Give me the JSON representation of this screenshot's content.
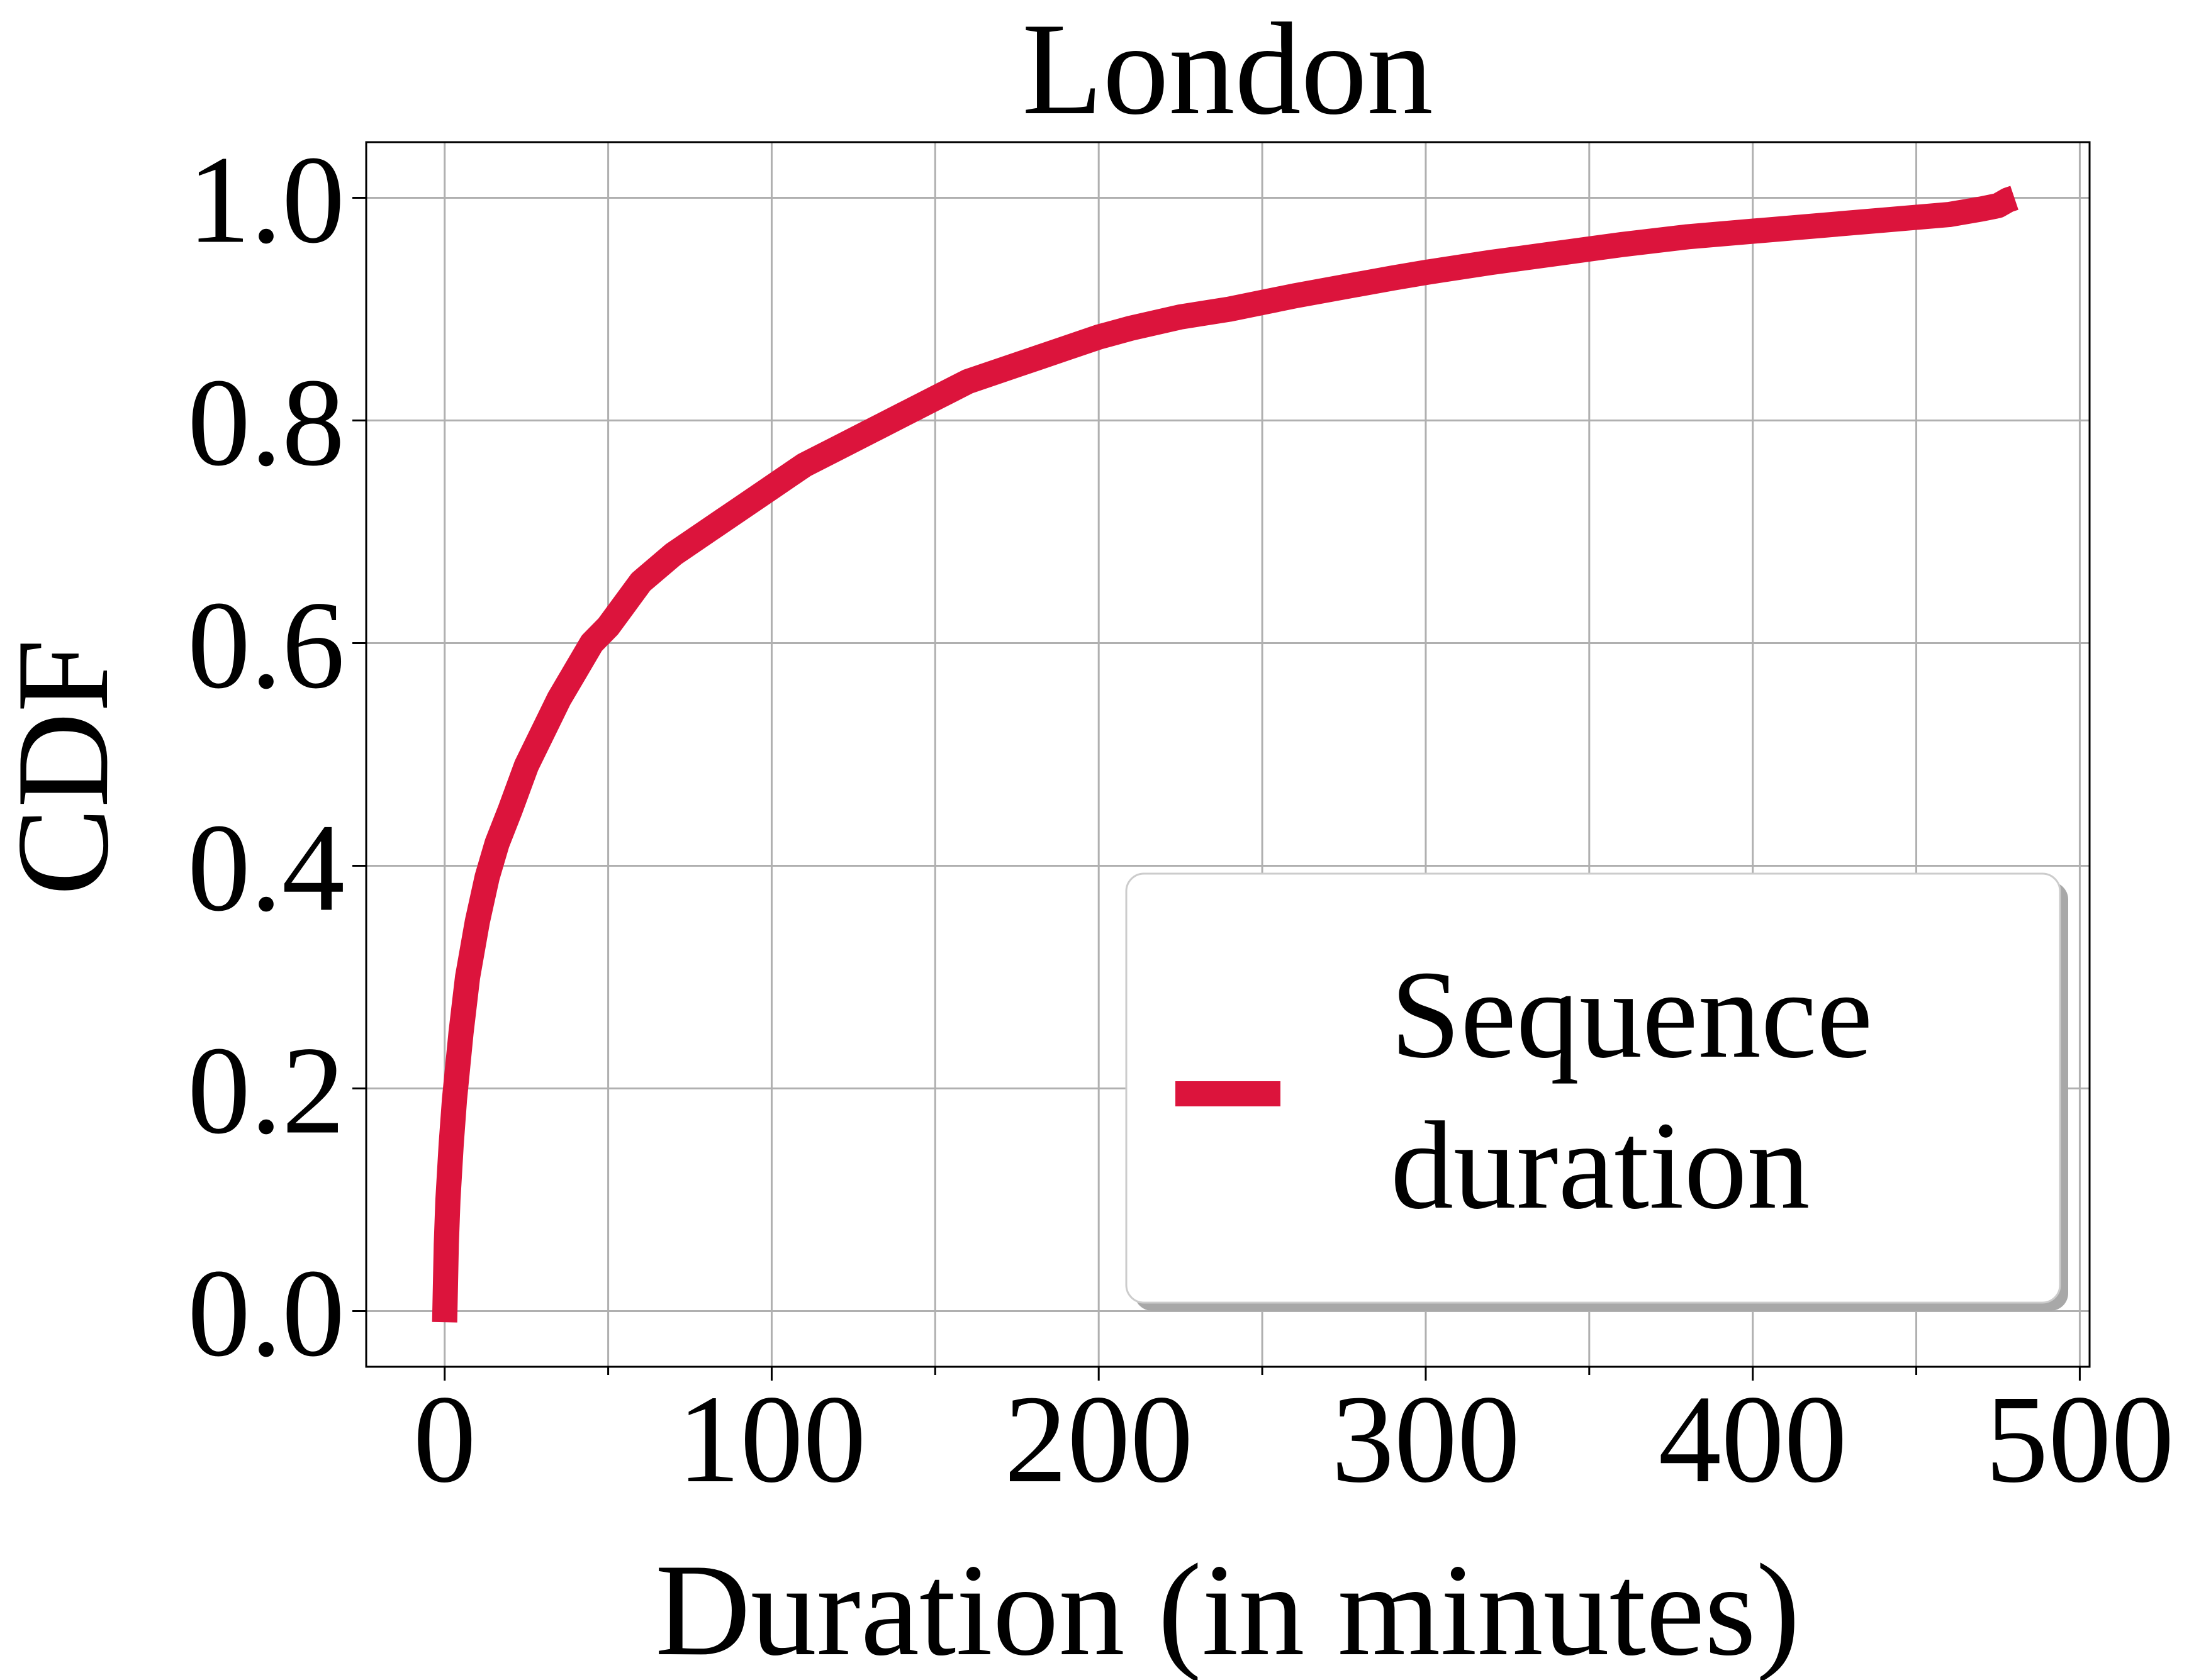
{
  "chart_data": {
    "type": "line",
    "title": "London",
    "xlabel": "Duration (in minutes)",
    "ylabel": "CDF",
    "xlim": [
      -24,
      503
    ],
    "ylim": [
      -0.05,
      1.05
    ],
    "xticks": [
      0,
      100,
      200,
      300,
      400,
      500
    ],
    "xtick_labels": [
      "0",
      "100",
      "200",
      "300",
      "400",
      "500"
    ],
    "xminor_ticks": [
      50,
      150,
      250,
      350,
      450
    ],
    "yticks": [
      0.0,
      0.2,
      0.4,
      0.6,
      0.8,
      1.0
    ],
    "ytick_labels": [
      "0.0",
      "0.2",
      "0.4",
      "0.6",
      "0.8",
      "1.0"
    ],
    "grid": true,
    "legend": {
      "placement": "lower-right"
    },
    "series": [
      {
        "name": "Sequence duration",
        "color": "#DC143C",
        "x": [
          0,
          0.5,
          1,
          2,
          3,
          4,
          5,
          7,
          10,
          13,
          16,
          20,
          25,
          30,
          35,
          40,
          45,
          50,
          55,
          60,
          70,
          80,
          90,
          100,
          110,
          120,
          130,
          140,
          150,
          160,
          175,
          190,
          200,
          210,
          225,
          240,
          250,
          260,
          275,
          290,
          300,
          320,
          340,
          360,
          380,
          400,
          420,
          440,
          460,
          470,
          475,
          478,
          480
        ],
        "y": [
          -0.01,
          0.06,
          0.1,
          0.15,
          0.19,
          0.22,
          0.25,
          0.3,
          0.35,
          0.39,
          0.42,
          0.45,
          0.49,
          0.52,
          0.55,
          0.575,
          0.6,
          0.615,
          0.635,
          0.655,
          0.68,
          0.7,
          0.72,
          0.74,
          0.76,
          0.775,
          0.79,
          0.805,
          0.82,
          0.835,
          0.85,
          0.865,
          0.875,
          0.883,
          0.893,
          0.9,
          0.906,
          0.912,
          0.92,
          0.928,
          0.933,
          0.942,
          0.95,
          0.958,
          0.965,
          0.97,
          0.975,
          0.98,
          0.985,
          0.99,
          0.993,
          0.998,
          1.0
        ]
      }
    ]
  }
}
